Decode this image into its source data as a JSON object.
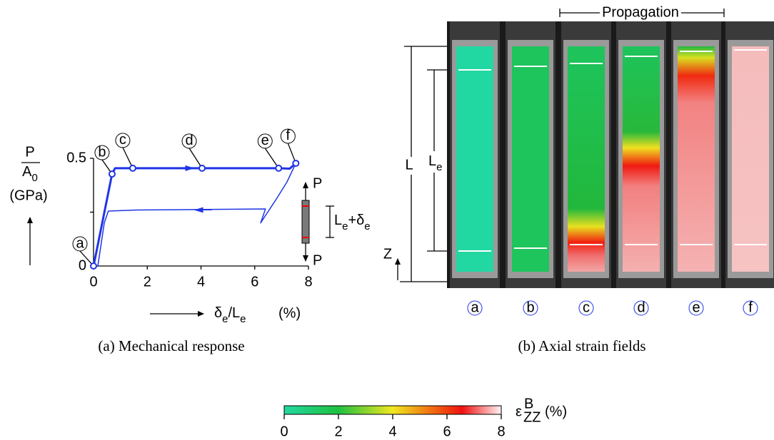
{
  "chart_data": {
    "type": "line",
    "caption": "(a) Mechanical response",
    "ylabel": {
      "numerator": "P",
      "denominator": [
        {
          "text": "A"
        },
        {
          "text": "0",
          "sub": true
        }
      ],
      "unit": "(GPa)"
    },
    "xlabel": [
      {
        "text": "δ"
      },
      {
        "text": "e",
        "sub": true
      },
      {
        "text": "/L"
      },
      {
        "text": "e",
        "sub": true
      }
    ],
    "xunit": "(%)",
    "xlim": [
      0,
      8
    ],
    "xticks": [
      0,
      2,
      4,
      6,
      8
    ],
    "ylim": [
      0,
      0.5
    ],
    "yticks": [
      0,
      {
        "value": 0.25,
        "label": null
      },
      0.5
    ],
    "series": [
      {
        "color": "#1f35e6",
        "x": [
          0,
          0.69,
          0.8,
          1.46,
          4.04,
          6.89,
          7.3,
          7.53
        ],
        "values": [
          0,
          0.427,
          0.454,
          0.454,
          0.454,
          0.454,
          0.452,
          0.477
        ]
      },
      {
        "color": "#1f35e6",
        "x": [
          7.53,
          7.2,
          6.8,
          6.22,
          6.4,
          1.6,
          0.55,
          0.4,
          0.16
        ],
        "values": [
          0.477,
          0.39,
          0.31,
          0.2,
          0.265,
          0.26,
          0.255,
          0.2,
          0
        ]
      }
    ],
    "points": {
      "labels": [
        "a",
        "b",
        "c",
        "d",
        "e",
        "f"
      ],
      "x": [
        0,
        0.69,
        1.46,
        4.04,
        6.89,
        7.53
      ],
      "values": [
        0,
        0.427,
        0.454,
        0.454,
        0.454,
        0.477
      ]
    },
    "specimen": {
      "top_load": "P",
      "bottom_load": "P",
      "length": [
        {
          "text": "L"
        },
        {
          "text": "e",
          "sub": true
        },
        {
          "text": "+δ"
        },
        {
          "text": "e",
          "sub": true
        }
      ]
    }
  },
  "strain_fields": {
    "caption": "(b) Axial strain fields",
    "header": "Propagation",
    "stages": [
      "a",
      "b",
      "c",
      "d",
      "e",
      "f"
    ],
    "length_label": "L",
    "gauge_label": [
      {
        "text": "L"
      },
      {
        "text": "e",
        "sub": true
      }
    ],
    "axis_label": "Z"
  },
  "colorbar": {
    "symbol": "ε",
    "sup": "B",
    "sub": "ZZ",
    "unit": "(%)",
    "lim": [
      0,
      8
    ],
    "ticks": [
      0,
      2,
      4,
      6,
      8
    ]
  }
}
